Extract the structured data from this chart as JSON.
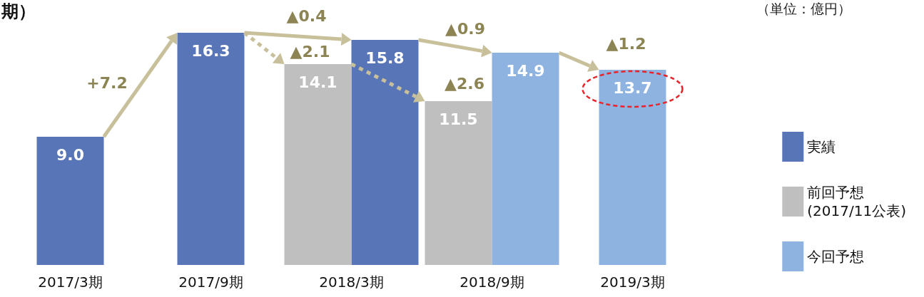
{
  "chart_data": {
    "type": "bar",
    "title": "期）",
    "categories": [
      "2017/3期",
      "2017/9期",
      "2018/3期",
      "2018/9期",
      "2019/3期"
    ],
    "series": [
      {
        "name": "実績",
        "color": "#5875b8",
        "values": [
          9.0,
          16.3,
          15.8,
          null,
          null
        ],
        "value_labels": [
          "9.0",
          "16.3",
          "15.8",
          null,
          null
        ]
      },
      {
        "name": "前回予想\n(2017/11公表)",
        "color": "#bfbfbf",
        "values": [
          null,
          null,
          14.1,
          11.5,
          null
        ],
        "value_labels": [
          null,
          null,
          "14.1",
          "11.5",
          null
        ]
      },
      {
        "name": "今回予想",
        "color": "#8eb3e0",
        "values": [
          null,
          null,
          null,
          14.9,
          13.7
        ],
        "value_labels": [
          null,
          null,
          null,
          "14.9",
          "13.7"
        ]
      }
    ],
    "annotations": [
      "+7.2",
      "▲0.4",
      "▲2.1",
      "▲0.9",
      "▲2.6",
      "▲1.2",
      "（単位：億円）"
    ],
    "legend": "right",
    "grid": false
  }
}
